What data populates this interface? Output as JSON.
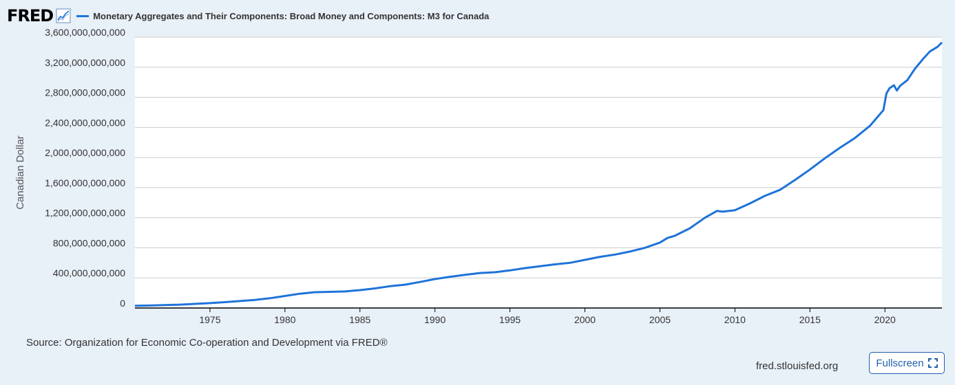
{
  "header": {
    "logo_text": "FRED",
    "logo_icon": "trend-line-icon",
    "title": "Monetary Aggregates and Their Components: Broad Money and Components: M3 for Canada"
  },
  "colors": {
    "series": "#1e73d8",
    "grid": "#cccccc",
    "background": "#e8f0f8",
    "plot_bg": "#ffffff",
    "button": "#1f5fae"
  },
  "footer": {
    "source": "Source: Organization for Economic Co-operation and Development via FRED®",
    "site": "fred.stlouisfed.org",
    "fullscreen_label": "Fullscreen",
    "fullscreen_icon": "expand-icon"
  },
  "chart_data": {
    "type": "line",
    "title": "Monetary Aggregates and Their Components: Broad Money and Components: M3 for Canada",
    "xlabel": "",
    "ylabel": "Canadian Dollar",
    "xlim": [
      1970.0,
      2023.8
    ],
    "ylim": [
      0,
      3600000000000
    ],
    "x_ticks": [
      1975,
      1980,
      1985,
      1990,
      1995,
      2000,
      2005,
      2010,
      2015,
      2020
    ],
    "y_ticks": [
      {
        "value": 0,
        "label": "0"
      },
      {
        "value": 400000000000,
        "label": "400,000,000,000"
      },
      {
        "value": 800000000000,
        "label": "800,000,000,000"
      },
      {
        "value": 1200000000000,
        "label": "1,200,000,000,000"
      },
      {
        "value": 1600000000000,
        "label": "1,600,000,000,000"
      },
      {
        "value": 2000000000000,
        "label": "2,000,000,000,000"
      },
      {
        "value": 2400000000000,
        "label": "2,400,000,000,000"
      },
      {
        "value": 2800000000000,
        "label": "2,800,000,000,000"
      },
      {
        "value": 3200000000000,
        "label": "3,200,000,000,000"
      },
      {
        "value": 3600000000000,
        "label": "3,600,000,000,000"
      }
    ],
    "grid": true,
    "series": [
      {
        "name": "M3 for Canada",
        "x": [
          1970.0,
          1971,
          1972,
          1973,
          1974,
          1975,
          1976,
          1977,
          1978,
          1979,
          1980,
          1981,
          1982,
          1983,
          1984,
          1985,
          1986,
          1987,
          1988,
          1989,
          1990,
          1991,
          1992,
          1993,
          1994,
          1995,
          1996,
          1997,
          1998,
          1999,
          2000,
          2001,
          2002,
          2003,
          2004,
          2005,
          2005.5,
          2006,
          2007,
          2008,
          2008.8,
          2009.2,
          2010,
          2011,
          2012,
          2013,
          2014,
          2015,
          2016,
          2017,
          2018,
          2019,
          2019.9,
          2020.1,
          2020.3,
          2020.6,
          2020.8,
          2021,
          2021.5,
          2022,
          2022.5,
          2023,
          2023.5,
          2023.8
        ],
        "values": [
          30000000000,
          33000000000,
          38000000000,
          45000000000,
          55000000000,
          65000000000,
          78000000000,
          92000000000,
          108000000000,
          130000000000,
          160000000000,
          190000000000,
          210000000000,
          215000000000,
          220000000000,
          238000000000,
          260000000000,
          290000000000,
          310000000000,
          345000000000,
          385000000000,
          415000000000,
          440000000000,
          465000000000,
          475000000000,
          500000000000,
          530000000000,
          555000000000,
          580000000000,
          600000000000,
          640000000000,
          680000000000,
          710000000000,
          750000000000,
          800000000000,
          870000000000,
          930000000000,
          960000000000,
          1060000000000,
          1200000000000,
          1290000000000,
          1280000000000,
          1300000000000,
          1390000000000,
          1490000000000,
          1570000000000,
          1700000000000,
          1840000000000,
          1990000000000,
          2130000000000,
          2260000000000,
          2420000000000,
          2630000000000,
          2850000000000,
          2920000000000,
          2960000000000,
          2890000000000,
          2950000000000,
          3030000000000,
          3180000000000,
          3300000000000,
          3410000000000,
          3470000000000,
          3530000000000
        ]
      }
    ]
  }
}
